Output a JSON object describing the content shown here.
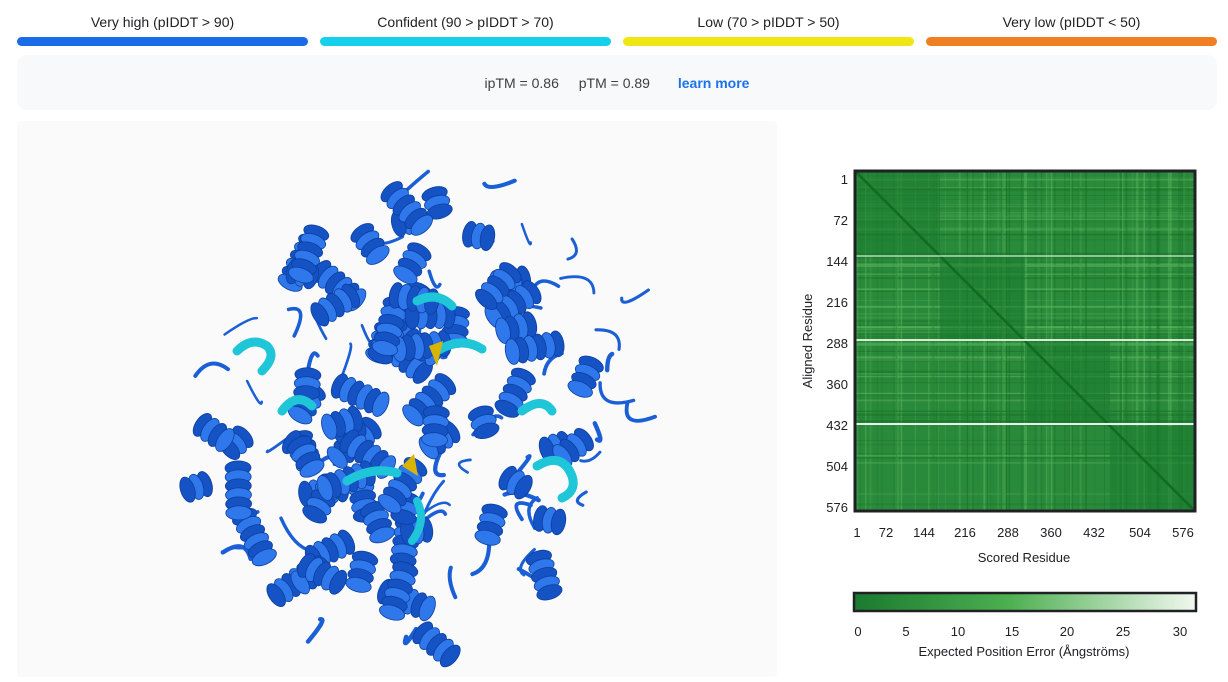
{
  "legend": [
    {
      "label": "Very high (pIDDT > 90)",
      "color": "#1a6be8"
    },
    {
      "label": "Confident (90 > pIDDT > 70)",
      "color": "#14d0ea"
    },
    {
      "label": "Low (70 > pIDDT > 50)",
      "color": "#f0e614"
    },
    {
      "label": "Very low (pIDDT < 50)",
      "color": "#ef7f22"
    }
  ],
  "metrics": {
    "iptm": "ipTM = 0.86",
    "ptm": "pTM = 0.89",
    "learn_more": "learn more"
  },
  "pae": {
    "y_axis_label": "Aligned Residue",
    "x_axis_label": "Scored Residue",
    "ticks": [
      "1",
      "72",
      "144",
      "216",
      "288",
      "360",
      "432",
      "504",
      "576"
    ],
    "colorbar_ticks": [
      "0",
      "5",
      "10",
      "15",
      "20",
      "25",
      "30"
    ],
    "colorbar_label": "Expected Position Error (Ångströms)",
    "colors": {
      "low_error": "#1a7a2e",
      "mid_error": "#4caf50",
      "high_error": "#f1f8ef"
    }
  },
  "structure": {
    "dominant_color": "#1a5fd6",
    "confident_color": "#1ec6d8",
    "low_color": "#d9b400"
  }
}
